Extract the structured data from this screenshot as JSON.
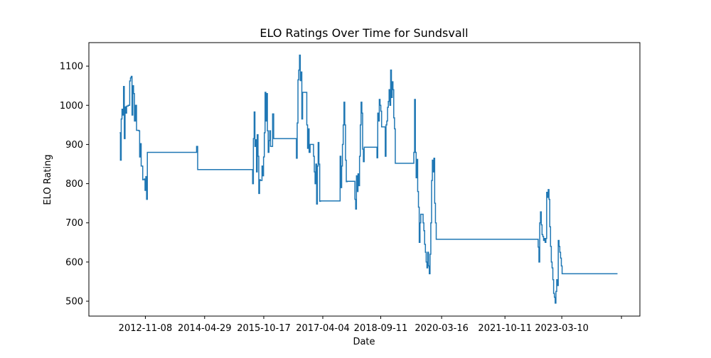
{
  "chart_data": {
    "type": "line",
    "title": "ELO Ratings Over Time for Sundsvall",
    "xlabel": "Date",
    "ylabel": "ELO Rating",
    "x_ticks": [
      "2012-11-08",
      "2014-04-29",
      "2015-10-17",
      "2017-04-04",
      "2018-09-11",
      "2020-03-16",
      "2021-10-11",
      "2023-03-10",
      ""
    ],
    "x_tick_dates": [
      "2012-11-08",
      "2014-04-29",
      "2015-10-17",
      "2017-04-04",
      "2018-09-11",
      "2020-03-16",
      "2021-10-11",
      "2023-03-10",
      "2024-09-01"
    ],
    "xlim": [
      "2011-06-15",
      "2025-02-15"
    ],
    "ylim": [
      462,
      1160
    ],
    "y_ticks": [
      500,
      600,
      700,
      800,
      900,
      1000,
      1100
    ],
    "grid": false,
    "line_color": "#1f77b4",
    "series": [
      {
        "drawstyle": "steps-post",
        "points": [
          [
            "2012-03-20",
            930
          ],
          [
            "2012-03-27",
            860
          ],
          [
            "2012-04-03",
            965
          ],
          [
            "2012-04-10",
            990
          ],
          [
            "2012-04-17",
            975
          ],
          [
            "2012-04-24",
            1048
          ],
          [
            "2012-05-01",
            915
          ],
          [
            "2012-05-08",
            996
          ],
          [
            "2012-05-15",
            980
          ],
          [
            "2012-05-22",
            998
          ],
          [
            "2012-06-05",
            1000
          ],
          [
            "2012-06-19",
            1062
          ],
          [
            "2012-06-26",
            1070
          ],
          [
            "2012-07-03",
            1074
          ],
          [
            "2012-07-10",
            975
          ],
          [
            "2012-07-17",
            1050
          ],
          [
            "2012-07-24",
            1030
          ],
          [
            "2012-08-01",
            960
          ],
          [
            "2012-08-10",
            1000
          ],
          [
            "2012-08-20",
            936
          ],
          [
            "2012-09-10",
            935
          ],
          [
            "2012-09-17",
            868
          ],
          [
            "2012-09-24",
            902
          ],
          [
            "2012-10-01",
            845
          ],
          [
            "2012-10-15",
            810
          ],
          [
            "2012-10-29",
            812
          ],
          [
            "2012-11-05",
            783
          ],
          [
            "2012-11-12",
            818
          ],
          [
            "2012-11-19",
            760
          ],
          [
            "2012-11-26",
            880
          ],
          [
            "2014-02-01",
            880
          ],
          [
            "2014-02-15",
            895
          ],
          [
            "2014-02-25",
            836
          ],
          [
            "2015-07-01",
            836
          ],
          [
            "2015-07-08",
            800
          ],
          [
            "2015-07-15",
            915
          ],
          [
            "2015-07-22",
            983
          ],
          [
            "2015-07-29",
            895
          ],
          [
            "2015-08-05",
            912
          ],
          [
            "2015-08-12",
            830
          ],
          [
            "2015-08-19",
            925
          ],
          [
            "2015-08-26",
            870
          ],
          [
            "2015-09-02",
            775
          ],
          [
            "2015-09-09",
            810
          ],
          [
            "2015-09-16",
            808
          ],
          [
            "2015-10-01",
            845
          ],
          [
            "2015-10-08",
            820
          ],
          [
            "2015-10-15",
            868
          ],
          [
            "2015-10-22",
            930
          ],
          [
            "2015-10-29",
            1033
          ],
          [
            "2015-11-05",
            960
          ],
          [
            "2015-11-12",
            1030
          ],
          [
            "2015-11-19",
            935
          ],
          [
            "2015-11-26",
            880
          ],
          [
            "2015-12-03",
            910
          ],
          [
            "2015-12-10",
            935
          ],
          [
            "2015-12-17",
            895
          ],
          [
            "2016-01-05",
            978
          ],
          [
            "2016-01-15",
            915
          ],
          [
            "2016-08-01",
            915
          ],
          [
            "2016-08-08",
            865
          ],
          [
            "2016-08-15",
            955
          ],
          [
            "2016-08-22",
            1065
          ],
          [
            "2016-08-29",
            1090
          ],
          [
            "2016-09-05",
            1128
          ],
          [
            "2016-09-12",
            1063
          ],
          [
            "2016-09-19",
            1085
          ],
          [
            "2016-09-26",
            965
          ],
          [
            "2016-10-03",
            1033
          ],
          [
            "2016-11-10",
            950
          ],
          [
            "2016-11-17",
            890
          ],
          [
            "2016-11-24",
            940
          ],
          [
            "2016-12-01",
            880
          ],
          [
            "2016-12-10",
            900
          ],
          [
            "2017-01-10",
            870
          ],
          [
            "2017-01-17",
            830
          ],
          [
            "2017-01-24",
            800
          ],
          [
            "2017-01-31",
            850
          ],
          [
            "2017-02-07",
            748
          ],
          [
            "2017-02-14",
            845
          ],
          [
            "2017-02-21",
            905
          ],
          [
            "2017-02-28",
            850
          ],
          [
            "2017-03-07",
            755
          ],
          [
            "2017-03-14",
            756
          ],
          [
            "2017-09-01",
            756
          ],
          [
            "2017-09-08",
            870
          ],
          [
            "2017-09-15",
            790
          ],
          [
            "2017-09-22",
            845
          ],
          [
            "2017-09-29",
            900
          ],
          [
            "2017-10-06",
            950
          ],
          [
            "2017-10-13",
            1008
          ],
          [
            "2017-10-20",
            950
          ],
          [
            "2017-10-27",
            860
          ],
          [
            "2017-11-03",
            805
          ],
          [
            "2017-11-10",
            806
          ],
          [
            "2018-01-20",
            760
          ],
          [
            "2018-01-27",
            735
          ],
          [
            "2018-02-03",
            820
          ],
          [
            "2018-02-10",
            780
          ],
          [
            "2018-02-17",
            825
          ],
          [
            "2018-02-24",
            795
          ],
          [
            "2018-03-03",
            870
          ],
          [
            "2018-03-10",
            950
          ],
          [
            "2018-03-17",
            1008
          ],
          [
            "2018-03-24",
            980
          ],
          [
            "2018-03-31",
            888
          ],
          [
            "2018-04-07",
            856
          ],
          [
            "2018-04-14",
            893
          ],
          [
            "2018-08-01",
            893
          ],
          [
            "2018-08-08",
            866
          ],
          [
            "2018-08-15",
            980
          ],
          [
            "2018-08-22",
            960
          ],
          [
            "2018-08-29",
            1015
          ],
          [
            "2018-09-05",
            1000
          ],
          [
            "2018-09-12",
            985
          ],
          [
            "2018-09-19",
            945
          ],
          [
            "2018-10-15",
            945
          ],
          [
            "2018-10-22",
            870
          ],
          [
            "2018-10-29",
            950
          ],
          [
            "2018-11-05",
            960
          ],
          [
            "2018-11-12",
            995
          ],
          [
            "2018-11-19",
            1010
          ],
          [
            "2018-11-26",
            1040
          ],
          [
            "2018-12-03",
            1000
          ],
          [
            "2018-12-10",
            1090
          ],
          [
            "2018-12-17",
            1020
          ],
          [
            "2018-12-24",
            1060
          ],
          [
            "2018-12-31",
            1040
          ],
          [
            "2019-01-07",
            968
          ],
          [
            "2019-01-14",
            940
          ],
          [
            "2019-01-21",
            852
          ],
          [
            "2019-07-01",
            852
          ],
          [
            "2019-07-08",
            880
          ],
          [
            "2019-07-15",
            1015
          ],
          [
            "2019-07-22",
            880
          ],
          [
            "2019-07-29",
            815
          ],
          [
            "2019-08-05",
            862
          ],
          [
            "2019-08-12",
            780
          ],
          [
            "2019-08-19",
            740
          ],
          [
            "2019-08-26",
            650
          ],
          [
            "2019-09-02",
            700
          ],
          [
            "2019-09-09",
            722
          ],
          [
            "2019-09-23",
            722
          ],
          [
            "2019-09-30",
            700
          ],
          [
            "2019-10-07",
            680
          ],
          [
            "2019-10-14",
            645
          ],
          [
            "2019-10-21",
            625
          ],
          [
            "2019-10-28",
            600
          ],
          [
            "2019-11-04",
            585
          ],
          [
            "2019-11-11",
            625
          ],
          [
            "2019-11-18",
            590
          ],
          [
            "2019-11-25",
            570
          ],
          [
            "2019-12-02",
            620
          ],
          [
            "2019-12-09",
            700
          ],
          [
            "2019-12-16",
            808
          ],
          [
            "2019-12-23",
            860
          ],
          [
            "2019-12-30",
            830
          ],
          [
            "2020-01-06",
            865
          ],
          [
            "2020-01-13",
            750
          ],
          [
            "2020-01-20",
            700
          ],
          [
            "2020-01-27",
            658
          ],
          [
            "2022-08-01",
            658
          ],
          [
            "2022-08-08",
            638
          ],
          [
            "2022-08-15",
            600
          ],
          [
            "2022-08-22",
            700
          ],
          [
            "2022-08-29",
            728
          ],
          [
            "2022-09-05",
            695
          ],
          [
            "2022-09-12",
            670
          ],
          [
            "2022-09-19",
            665
          ],
          [
            "2022-09-26",
            655
          ],
          [
            "2022-10-03",
            660
          ],
          [
            "2022-10-10",
            650
          ],
          [
            "2022-10-17",
            660
          ],
          [
            "2022-10-24",
            778
          ],
          [
            "2022-10-31",
            765
          ],
          [
            "2022-11-07",
            785
          ],
          [
            "2022-11-14",
            760
          ],
          [
            "2022-11-21",
            690
          ],
          [
            "2022-11-28",
            640
          ],
          [
            "2022-12-05",
            600
          ],
          [
            "2022-12-12",
            585
          ],
          [
            "2022-12-19",
            555
          ],
          [
            "2022-12-26",
            520
          ],
          [
            "2023-01-02",
            510
          ],
          [
            "2023-01-09",
            495
          ],
          [
            "2023-01-16",
            525
          ],
          [
            "2023-01-23",
            555
          ],
          [
            "2023-01-30",
            540
          ],
          [
            "2023-02-06",
            655
          ],
          [
            "2023-02-13",
            640
          ],
          [
            "2023-02-20",
            625
          ],
          [
            "2023-02-27",
            610
          ],
          [
            "2023-03-06",
            590
          ],
          [
            "2023-03-13",
            570
          ],
          [
            "2024-07-27",
            570
          ]
        ]
      }
    ]
  }
}
